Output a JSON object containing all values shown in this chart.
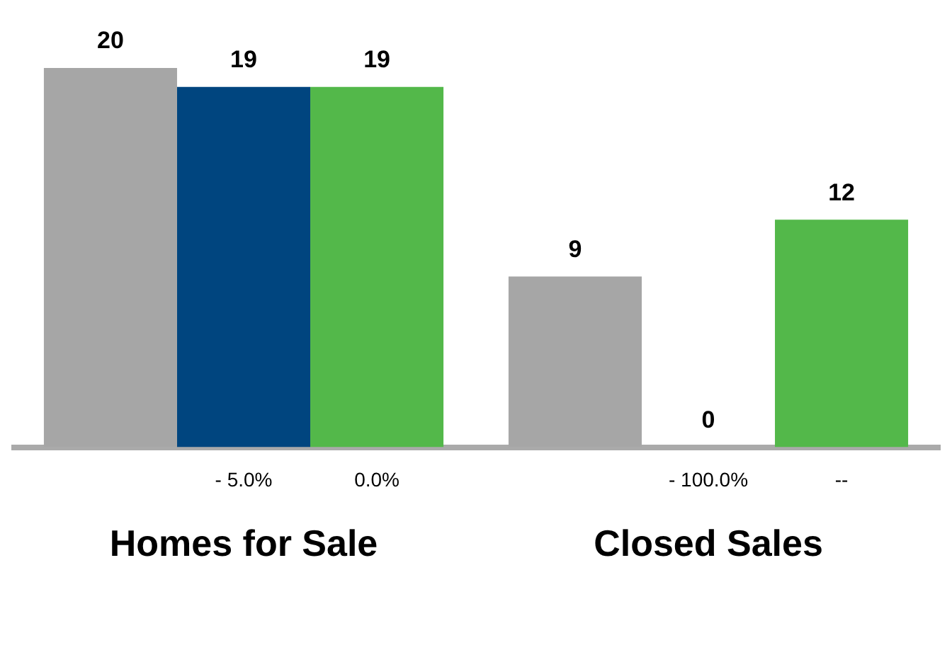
{
  "chart_data": {
    "type": "bar",
    "categories": [
      "Homes for Sale",
      "Closed Sales"
    ],
    "series": [
      {
        "color": "#a6a6a6",
        "values": [
          20,
          9
        ]
      },
      {
        "color": "#00457f",
        "values": [
          19,
          0
        ]
      },
      {
        "color": "#53b84a",
        "values": [
          19,
          12
        ]
      }
    ],
    "data_labels": true,
    "legend": false,
    "grid": false,
    "annotations": [
      "- 5.0%",
      "0.0%",
      "- 100.0%",
      "--"
    ]
  }
}
